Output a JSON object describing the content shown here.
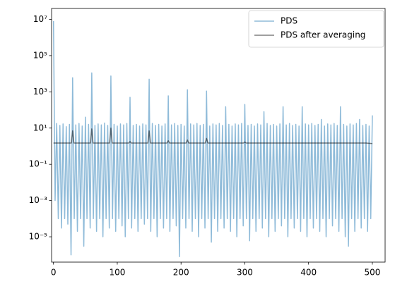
{
  "chart_data": {
    "type": "line",
    "log_y": true,
    "legend": "upper right",
    "xlim": [
      -3,
      520
    ],
    "xticks": [
      0,
      100,
      200,
      300,
      400,
      500
    ],
    "ylim": [
      4e-07,
      40000000.0
    ],
    "yticks": [
      {
        "value": 1e-05,
        "label": "10⁻⁵"
      },
      {
        "value": 0.001,
        "label": "10⁻³"
      },
      {
        "value": 0.1,
        "label": "10⁻¹"
      },
      {
        "value": 10,
        "label": "10¹"
      },
      {
        "value": 1000,
        "label": "10³"
      },
      {
        "value": 100000,
        "label": "10⁵"
      },
      {
        "value": 10000000,
        "label": "10⁷"
      }
    ],
    "series": [
      {
        "name": "PDS",
        "color": "rgba(31,119,180,0.5)",
        "x": [
          0,
          2.5,
          5,
          7.5,
          10,
          12.5,
          15,
          17.5,
          20,
          22.5,
          25,
          27.5,
          30,
          32.5,
          35,
          37.5,
          40,
          42.5,
          45,
          47.5,
          50,
          52.5,
          55,
          57.5,
          60,
          62.5,
          65,
          67.5,
          70,
          72.5,
          75,
          77.5,
          80,
          82.5,
          85,
          87.5,
          90,
          92.5,
          95,
          97.5,
          100,
          102.5,
          105,
          107.5,
          110,
          112.5,
          115,
          117.5,
          120,
          122.5,
          125,
          127.5,
          130,
          132.5,
          135,
          137.5,
          140,
          142.5,
          145,
          147.5,
          150,
          152.5,
          155,
          157.5,
          160,
          162.5,
          165,
          167.5,
          170,
          172.5,
          175,
          177.5,
          180,
          182.5,
          185,
          187.5,
          190,
          192.5,
          195,
          197.5,
          200,
          202.5,
          205,
          207.5,
          210,
          212.5,
          215,
          217.5,
          220,
          222.5,
          225,
          227.5,
          230,
          232.5,
          235,
          237.5,
          240,
          242.5,
          245,
          247.5,
          250,
          252.5,
          255,
          257.5,
          260,
          262.5,
          265,
          267.5,
          270,
          272.5,
          275,
          277.5,
          280,
          282.5,
          285,
          287.5,
          290,
          292.5,
          295,
          297.5,
          300,
          302.5,
          305,
          307.5,
          310,
          312.5,
          315,
          317.5,
          320,
          322.5,
          325,
          327.5,
          330,
          332.5,
          335,
          337.5,
          340,
          342.5,
          345,
          347.5,
          350,
          352.5,
          355,
          357.5,
          360,
          362.5,
          365,
          367.5,
          370,
          372.5,
          375,
          377.5,
          380,
          382.5,
          385,
          387.5,
          390,
          392.5,
          395,
          397.5,
          400,
          402.5,
          405,
          407.5,
          410,
          412.5,
          415,
          417.5,
          420,
          422.5,
          425,
          427.5,
          430,
          432.5,
          435,
          437.5,
          440,
          442.5,
          445,
          447.5,
          450,
          452.5,
          455,
          457.5,
          460,
          462.5,
          465,
          467.5,
          470,
          472.5,
          475,
          477.5,
          480,
          482.5,
          485,
          487.5,
          490,
          492.5,
          495,
          497.5,
          500
        ],
        "values": [
          8000000,
          0.001,
          18,
          0.0001,
          14,
          3e-05,
          17,
          0.0001,
          12,
          5e-05,
          16,
          1e-06,
          6000,
          0.0001,
          15,
          2e-05,
          18,
          0.0001,
          13,
          3e-06,
          40,
          0.0001,
          16,
          3e-05,
          11000,
          0.0001,
          14,
          2e-05,
          17,
          0.0001,
          15,
          1e-05,
          19,
          0.0001,
          14,
          3e-05,
          7500,
          0.0001,
          16,
          2e-05,
          13,
          0.0001,
          17,
          4e-05,
          15,
          1e-05,
          18,
          0.0001,
          500,
          3e-05,
          14,
          0.0001,
          16,
          2e-05,
          13,
          0.0001,
          17,
          5e-05,
          15,
          0.0001,
          5000,
          2e-05,
          18,
          0.0001,
          14,
          1e-05,
          16,
          0.0001,
          13,
          3e-05,
          17,
          0.0001,
          600,
          2e-05,
          15,
          0.0001,
          18,
          4e-05,
          14,
          8e-07,
          16,
          0.0001,
          13,
          3e-05,
          1300,
          0.0001,
          17,
          2e-05,
          15,
          0.0001,
          18,
          1e-05,
          14,
          0.0001,
          16,
          3e-05,
          1100,
          0.0001,
          13,
          5e-06,
          17,
          0.0001,
          15,
          2e-05,
          18,
          0.0001,
          14,
          3e-05,
          150,
          0.0001,
          16,
          2e-05,
          13,
          0.0001,
          17,
          1e-05,
          15,
          0.0001,
          18,
          4e-05,
          200,
          0.0001,
          14,
          6e-06,
          16,
          0.0001,
          13,
          2e-05,
          17,
          0.0001,
          15,
          3e-05,
          80,
          0.0001,
          18,
          1e-05,
          14,
          0.0001,
          16,
          2e-05,
          13,
          0.0001,
          17,
          4e-05,
          150,
          0.0001,
          15,
          1e-05,
          18,
          0.0001,
          14,
          3e-05,
          16,
          0.0001,
          13,
          2e-05,
          150,
          0.0001,
          17,
          1e-05,
          15,
          0.0001,
          18,
          3e-05,
          14,
          0.0001,
          16,
          2e-05,
          30,
          0.0001,
          13,
          1e-05,
          17,
          0.0001,
          15,
          4e-05,
          18,
          0.0001,
          14,
          2e-05,
          150,
          0.0001,
          16,
          1e-05,
          13,
          3e-06,
          17,
          0.0001,
          15,
          2e-05,
          18,
          0.0001,
          30,
          3e-05,
          14,
          0.0001,
          16,
          2e-05,
          13,
          0.0001,
          50
        ]
      },
      {
        "name": "PDS after averaging",
        "color": "rgba(0,0,0,0.5)",
        "x": [
          0,
          10,
          20,
          28,
          30,
          32,
          40,
          50,
          58,
          60,
          62,
          70,
          80,
          88,
          90,
          92,
          100,
          110,
          118,
          120,
          122,
          130,
          140,
          148,
          150,
          152,
          160,
          170,
          178,
          180,
          182,
          190,
          200,
          208,
          210,
          212,
          220,
          230,
          238,
          240,
          242,
          250,
          260,
          270,
          280,
          290,
          298,
          300,
          302,
          310,
          320,
          330,
          340,
          350,
          360,
          370,
          380,
          390,
          400,
          410,
          420,
          430,
          440,
          450,
          460,
          470,
          480,
          490,
          500
        ],
        "values": [
          1.5,
          1.5,
          1.5,
          1.5,
          7,
          1.5,
          1.5,
          1.5,
          1.5,
          9,
          1.5,
          1.5,
          1.5,
          1.5,
          10,
          1.5,
          1.5,
          1.5,
          1.5,
          1.8,
          1.5,
          1.5,
          1.5,
          1.5,
          7,
          1.5,
          1.5,
          1.5,
          1.5,
          2,
          1.5,
          1.5,
          1.5,
          1.5,
          2.2,
          1.5,
          1.5,
          1.5,
          1.5,
          2.7,
          1.5,
          1.5,
          1.5,
          1.5,
          1.5,
          1.5,
          1.5,
          1.7,
          1.5,
          1.5,
          1.5,
          1.5,
          1.5,
          1.5,
          1.5,
          1.5,
          1.5,
          1.5,
          1.5,
          1.5,
          1.5,
          1.5,
          1.5,
          1.5,
          1.5,
          1.5,
          1.5,
          1.5,
          1.4
        ]
      }
    ]
  }
}
